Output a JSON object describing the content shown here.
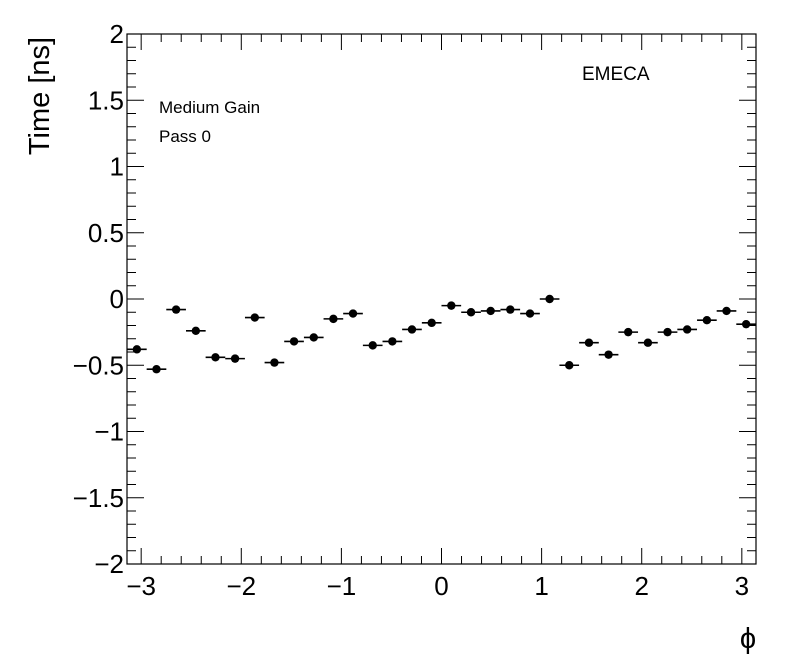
{
  "chart_data": {
    "type": "scatter",
    "title": "",
    "xlabel": "ϕ",
    "ylabel": "Time [ns]",
    "xlim": [
      -3.14159,
      3.14159
    ],
    "ylim": [
      -2,
      2
    ],
    "xticks": [
      -3,
      -2,
      -1,
      0,
      1,
      2,
      3
    ],
    "yticks": [
      -2,
      -1.5,
      -1,
      -0.5,
      0,
      0.5,
      1,
      1.5,
      2
    ],
    "xtick_labels": [
      "−3",
      "−2",
      "−1",
      "0",
      "1",
      "2",
      "3"
    ],
    "ytick_labels": [
      "−2",
      "−1.5",
      "−1",
      "−0.5",
      "0",
      "0.5",
      "1",
      "1.5",
      "2"
    ],
    "annotations": {
      "detector": "EMECA",
      "gain": "Medium Gain",
      "pass": "Pass 0"
    },
    "bin_half_width": 0.0982,
    "series": [
      {
        "x": [
          -3.043,
          -2.847,
          -2.651,
          -2.454,
          -2.258,
          -2.062,
          -1.865,
          -1.669,
          -1.473,
          -1.276,
          -1.08,
          -0.884,
          -0.687,
          -0.491,
          -0.295,
          -0.098,
          0.098,
          0.295,
          0.491,
          0.687,
          0.884,
          1.08,
          1.276,
          1.473,
          1.669,
          1.865,
          2.062,
          2.258,
          2.454,
          2.651,
          2.847,
          3.043
        ],
        "y": [
          -0.38,
          -0.53,
          -0.08,
          -0.24,
          -0.44,
          -0.45,
          -0.14,
          -0.48,
          -0.32,
          -0.29,
          -0.15,
          -0.11,
          -0.35,
          -0.32,
          -0.23,
          -0.18,
          -0.05,
          -0.1,
          -0.09,
          -0.08,
          -0.11,
          0.0,
          -0.5,
          -0.33,
          -0.42,
          -0.25,
          -0.33,
          -0.25,
          -0.23,
          -0.16,
          -0.09,
          -0.19
        ]
      }
    ]
  }
}
